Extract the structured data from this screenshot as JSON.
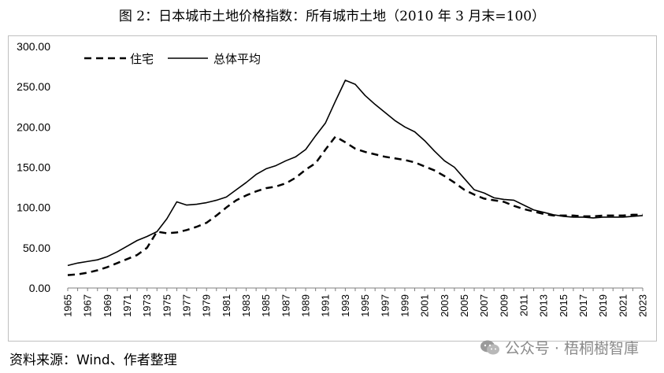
{
  "chart_data": {
    "type": "line",
    "title": "图 2：日本城市土地价格指数：所有城市土地（2010 年 3 月末=100）",
    "xlabel": "",
    "ylabel": "",
    "ylim": [
      0,
      300
    ],
    "y_ticks": [
      "0.00",
      "50.00",
      "100.00",
      "150.00",
      "200.00",
      "250.00",
      "300.00"
    ],
    "x_ticks": [
      "1965",
      "1967",
      "1969",
      "1971",
      "1973",
      "1975",
      "1977",
      "1979",
      "1981",
      "1983",
      "1985",
      "1987",
      "1989",
      "1991",
      "1993",
      "1995",
      "1997",
      "1999",
      "2001",
      "2003",
      "2005",
      "2007",
      "2009",
      "2011",
      "2013",
      "2015",
      "2017",
      "2019",
      "2021",
      "2023"
    ],
    "x": [
      1965,
      1966,
      1967,
      1968,
      1969,
      1970,
      1971,
      1972,
      1973,
      1974,
      1975,
      1976,
      1977,
      1978,
      1979,
      1980,
      1981,
      1982,
      1983,
      1984,
      1985,
      1986,
      1987,
      1988,
      1989,
      1990,
      1991,
      1992,
      1993,
      1994,
      1995,
      1996,
      1997,
      1998,
      1999,
      2000,
      2001,
      2002,
      2003,
      2004,
      2005,
      2006,
      2007,
      2008,
      2009,
      2010,
      2011,
      2012,
      2013,
      2014,
      2015,
      2016,
      2017,
      2018,
      2019,
      2020,
      2021,
      2022,
      2023
    ],
    "legend_position": "top-left",
    "series": [
      {
        "name": "住宅",
        "style": "dashed",
        "color": "#000000",
        "values": [
          16,
          17,
          19,
          22,
          26,
          31,
          36,
          41,
          50,
          70,
          68,
          69,
          72,
          76,
          81,
          90,
          100,
          109,
          115,
          120,
          124,
          126,
          130,
          137,
          147,
          155,
          172,
          188,
          181,
          173,
          169,
          166,
          163,
          161,
          159,
          156,
          151,
          146,
          139,
          131,
          122,
          116,
          111,
          109,
          107,
          102,
          98,
          95,
          92,
          90,
          90,
          90,
          89,
          89,
          90,
          90,
          90,
          91,
          91
        ]
      },
      {
        "name": "总体平均",
        "style": "solid",
        "color": "#000000",
        "values": [
          28,
          31,
          33,
          35,
          39,
          45,
          52,
          59,
          64,
          70,
          86,
          107,
          103,
          104,
          106,
          109,
          113,
          122,
          131,
          141,
          148,
          152,
          158,
          163,
          172,
          189,
          205,
          232,
          258,
          253,
          239,
          228,
          218,
          208,
          200,
          194,
          183,
          170,
          158,
          150,
          136,
          122,
          118,
          112,
          110,
          109,
          103,
          97,
          94,
          91,
          89,
          88,
          88,
          87,
          88,
          88,
          88,
          89,
          90
        ]
      }
    ]
  },
  "footer": {
    "source": "资料来源：Wind、作者整理",
    "watermark": "公众号 · 梧桐樹智庫"
  }
}
